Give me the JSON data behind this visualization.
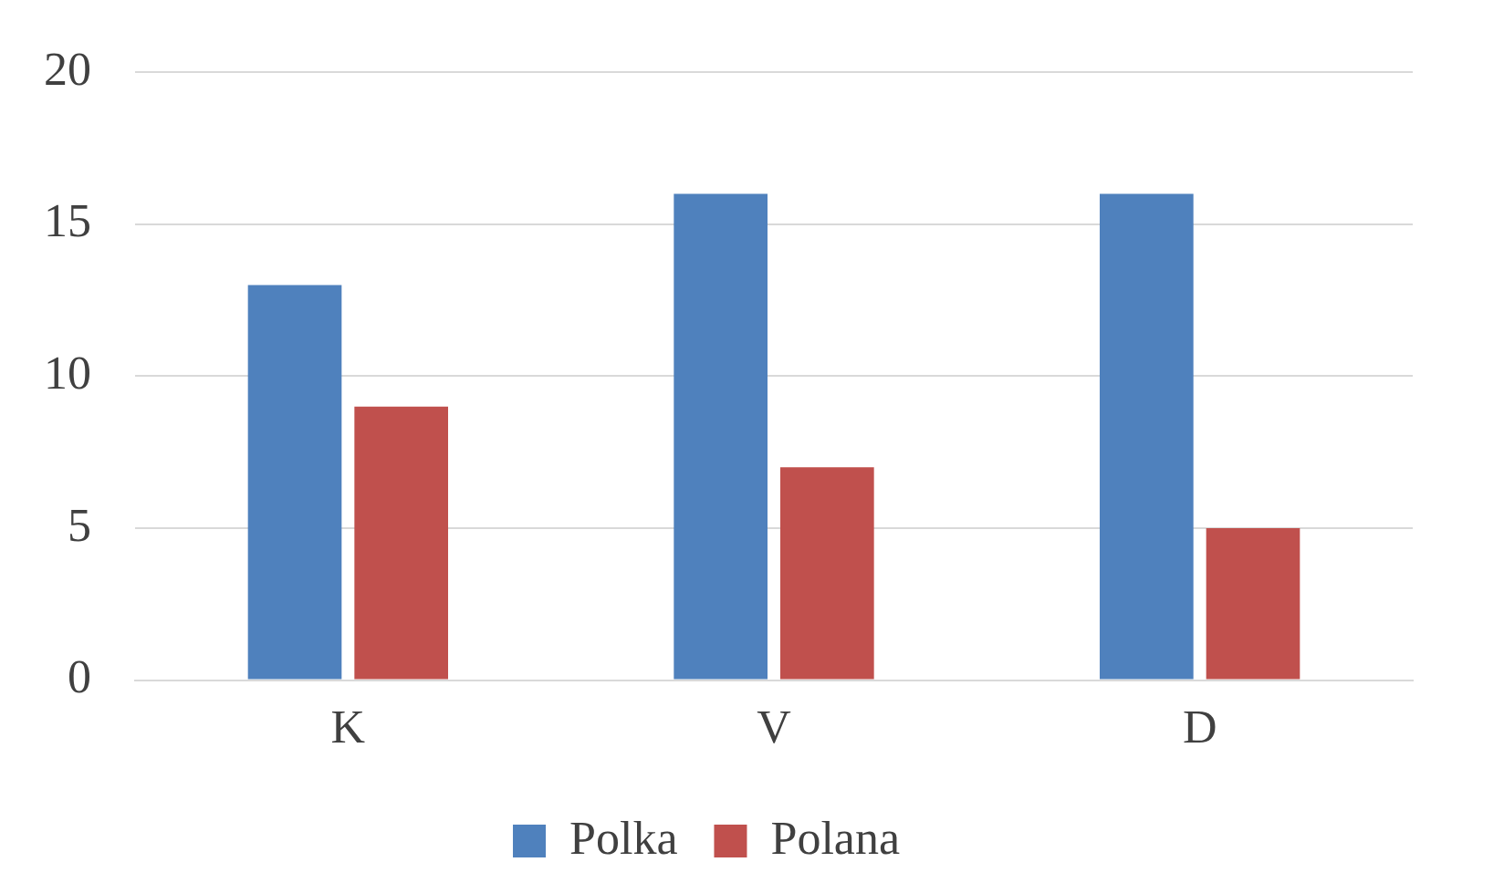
{
  "chart_data": {
    "type": "bar",
    "categories": [
      "K",
      "V",
      "D"
    ],
    "series": [
      {
        "name": "Polka",
        "color": "#4f81bd",
        "values": [
          13,
          16,
          16
        ]
      },
      {
        "name": "Polana",
        "color": "#c0504d",
        "values": [
          9,
          7,
          5
        ]
      }
    ],
    "ylim": [
      0,
      20
    ],
    "yticks": [
      0,
      5,
      10,
      15,
      20
    ],
    "grid": "y",
    "legend": "bottom"
  }
}
